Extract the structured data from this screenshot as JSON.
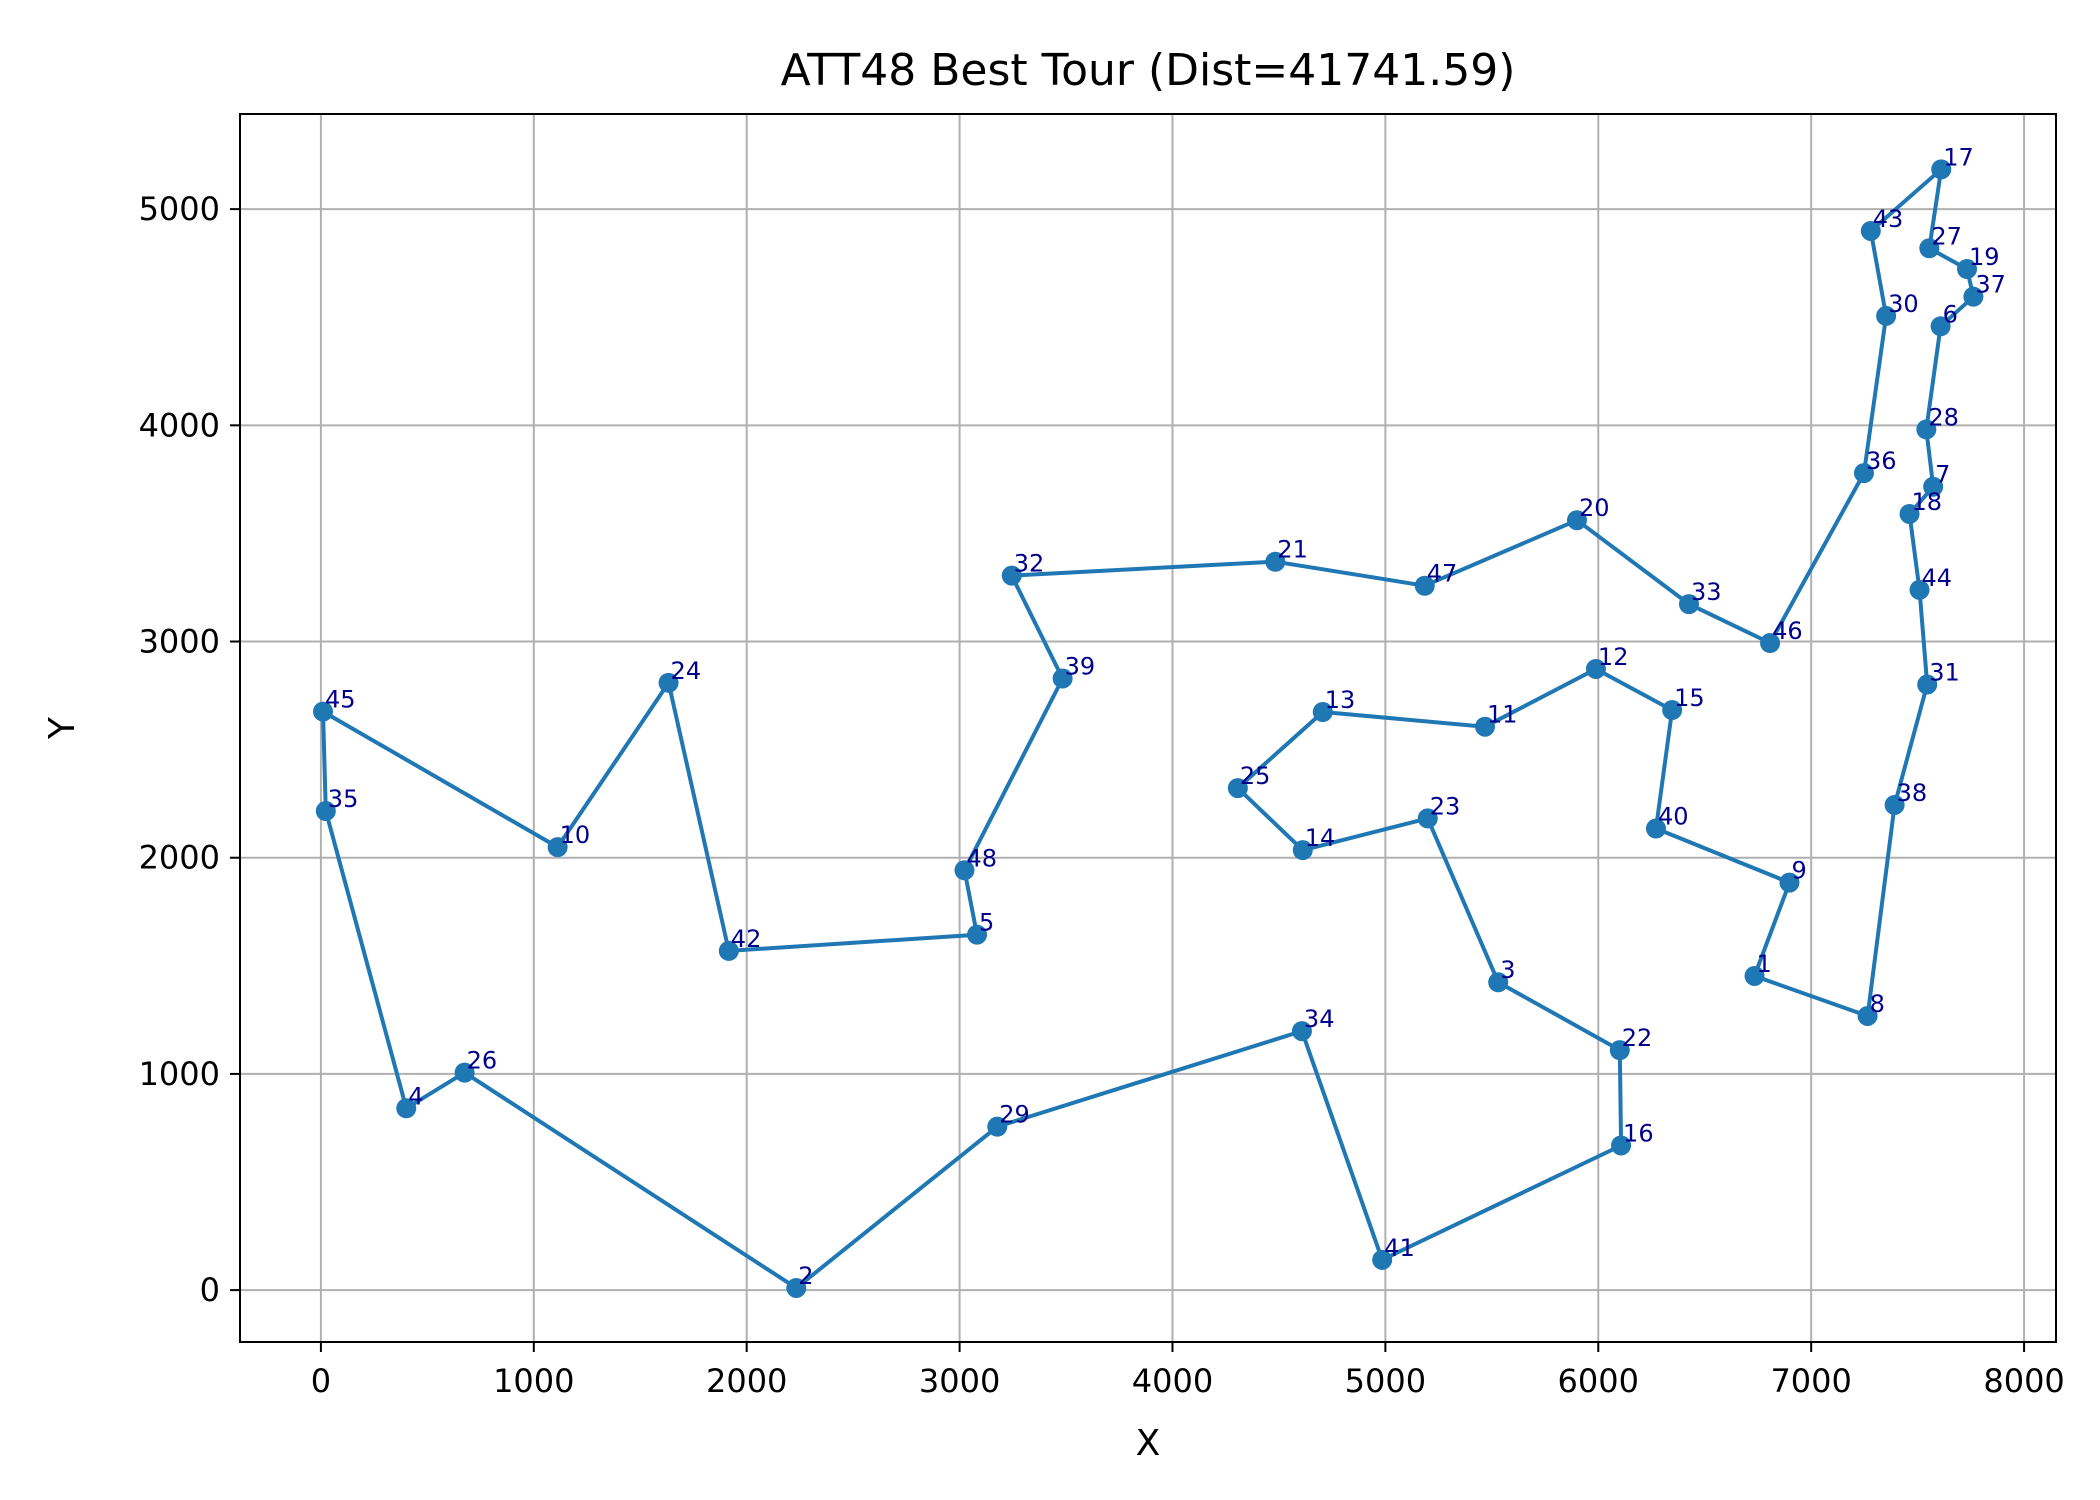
{
  "chart_data": {
    "type": "line",
    "title": "ATT48 Best Tour (Dist=41741.59)",
    "xlabel": "X",
    "ylabel": "Y",
    "xlim": [
      -380,
      8150
    ],
    "ylim": [
      -240,
      5440
    ],
    "x_ticks": [
      0,
      1000,
      2000,
      3000,
      4000,
      5000,
      6000,
      7000,
      8000
    ],
    "y_ticks": [
      0,
      1000,
      2000,
      3000,
      4000,
      5000
    ],
    "grid": true,
    "series_color": "#1f77b4",
    "label_color": "#00008b",
    "cities": {
      "1": [
        6734,
        1453
      ],
      "2": [
        2233,
        10
      ],
      "3": [
        5530,
        1424
      ],
      "4": [
        401,
        841
      ],
      "5": [
        3082,
        1644
      ],
      "6": [
        7608,
        4458
      ],
      "7": [
        7573,
        3716
      ],
      "8": [
        7265,
        1268
      ],
      "9": [
        6898,
        1885
      ],
      "10": [
        1112,
        2049
      ],
      "11": [
        5468,
        2606
      ],
      "12": [
        5989,
        2873
      ],
      "13": [
        4706,
        2674
      ],
      "14": [
        4612,
        2035
      ],
      "15": [
        6347,
        2683
      ],
      "16": [
        6107,
        669
      ],
      "17": [
        7611,
        5184
      ],
      "18": [
        7462,
        3590
      ],
      "19": [
        7732,
        4723
      ],
      "20": [
        5900,
        3561
      ],
      "21": [
        4483,
        3369
      ],
      "22": [
        6101,
        1110
      ],
      "23": [
        5199,
        2182
      ],
      "24": [
        1633,
        2809
      ],
      "25": [
        4307,
        2322
      ],
      "26": [
        675,
        1006
      ],
      "27": [
        7555,
        4819
      ],
      "28": [
        7541,
        3981
      ],
      "29": [
        3177,
        756
      ],
      "30": [
        7352,
        4506
      ],
      "31": [
        7545,
        2801
      ],
      "32": [
        3245,
        3305
      ],
      "33": [
        6426,
        3173
      ],
      "34": [
        4608,
        1198
      ],
      "35": [
        23,
        2216
      ],
      "36": [
        7248,
        3779
      ],
      "37": [
        7762,
        4595
      ],
      "38": [
        7392,
        2244
      ],
      "39": [
        3484,
        2829
      ],
      "40": [
        6271,
        2135
      ],
      "41": [
        4985,
        140
      ],
      "42": [
        1916,
        1569
      ],
      "43": [
        7280,
        4899
      ],
      "44": [
        7509,
        3239
      ],
      "45": [
        10,
        2676
      ],
      "46": [
        6807,
        2993
      ],
      "47": [
        5185,
        3258
      ],
      "48": [
        3023,
        1942
      ]
    },
    "tour": [
      1,
      8,
      38,
      31,
      44,
      18,
      7,
      28,
      6,
      37,
      19,
      27,
      17,
      43,
      30,
      36,
      46,
      33,
      20,
      47,
      21,
      32,
      39,
      48,
      5,
      42,
      24,
      10,
      45,
      35,
      4,
      26,
      2,
      29,
      34,
      41,
      16,
      22,
      3,
      23,
      14,
      25,
      13,
      11,
      12,
      15,
      40,
      9,
      1
    ]
  }
}
